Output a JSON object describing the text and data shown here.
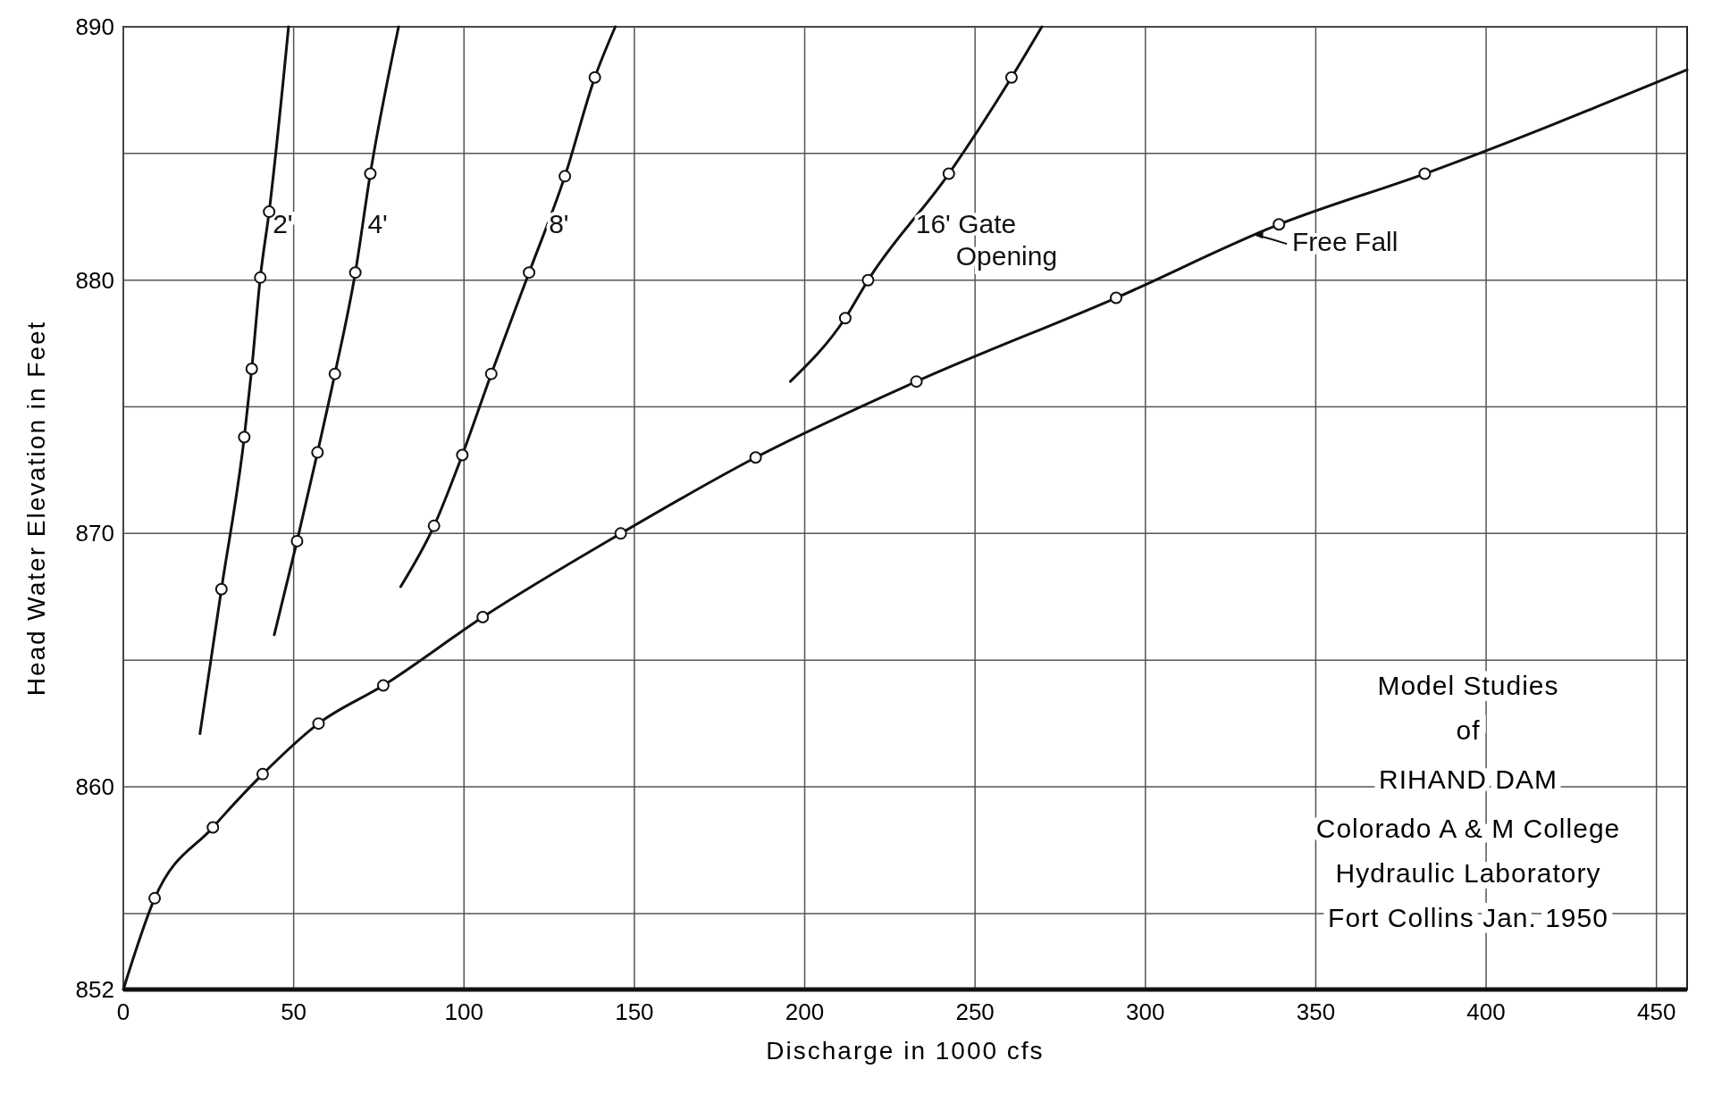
{
  "chart_data": {
    "type": "line",
    "xlabel": "Discharge in 1000 cfs",
    "ylabel": "Head Water Elevation in Feet",
    "xlim": [
      0,
      459
    ],
    "ylim": [
      852,
      890
    ],
    "xticks": [
      0,
      50,
      100,
      150,
      200,
      250,
      300,
      350,
      400,
      450
    ],
    "yticks": [
      852,
      {
        "value": 855,
        "label": null
      },
      860,
      {
        "value": 865,
        "label": null
      },
      870,
      {
        "value": 875,
        "label": null
      },
      880,
      {
        "value": 885,
        "label": null
      },
      890
    ],
    "grid": true,
    "series": [
      {
        "name": "2'",
        "color": "#111111",
        "marker": "none",
        "line_style": "solid",
        "x": [
          22.5,
          28.8,
          35.5,
          37.7,
          40.2,
          42.8,
          48.5
        ],
        "values": [
          862.1,
          867.8,
          873.8,
          876.5,
          880.1,
          882.7,
          890
        ]
      },
      {
        "type": "scatter",
        "color": "#111111",
        "marker": "circle",
        "x": [
          28.8,
          35.5,
          37.7,
          40.2,
          42.8
        ],
        "values": [
          867.8,
          873.8,
          876.5,
          880.1,
          882.7
        ]
      },
      {
        "name": "4'",
        "color": "#111111",
        "marker": "none",
        "line_style": "solid",
        "x": [
          44.3,
          51,
          57,
          62.1,
          68.1,
          72.5,
          80.8
        ],
        "values": [
          866.0,
          869.7,
          873.2,
          876.3,
          880.3,
          884.2,
          890
        ]
      },
      {
        "type": "scatter",
        "color": "#111111",
        "marker": "circle",
        "x": [
          51,
          57,
          62.1,
          68.1,
          72.5
        ],
        "values": [
          869.7,
          873.2,
          876.3,
          880.3,
          884.2
        ]
      },
      {
        "name": "8'",
        "color": "#111111",
        "marker": "none",
        "line_style": "solid",
        "x": [
          81.4,
          91.2,
          99.5,
          108,
          119.1,
          129.6,
          138.4,
          144.4
        ],
        "values": [
          867.9,
          870.3,
          873.1,
          876.3,
          880.3,
          884.1,
          888.0,
          890
        ]
      },
      {
        "type": "scatter",
        "color": "#111111",
        "marker": "circle",
        "x": [
          91.2,
          99.5,
          108,
          119.1,
          129.6,
          138.4
        ],
        "values": [
          870.3,
          873.1,
          876.3,
          880.3,
          884.1,
          888.0
        ]
      },
      {
        "name": "16' Gate Opening",
        "color": "#111111",
        "marker": "none",
        "line_style": "solid",
        "x": [
          195.8,
          211.9,
          218.6,
          242.3,
          260.7,
          269.6
        ],
        "values": [
          876.0,
          878.5,
          880.0,
          884.2,
          888.0,
          890
        ]
      },
      {
        "type": "scatter",
        "color": "#111111",
        "marker": "circle",
        "x": [
          211.9,
          218.6,
          242.3,
          260.7
        ],
        "values": [
          878.5,
          880.0,
          884.2,
          888.0
        ]
      },
      {
        "name": "Free Fall",
        "color": "#111111",
        "marker": "none",
        "line_style": "solid",
        "x": [
          0,
          9.2,
          26.3,
          40.9,
          57.3,
          76.3,
          105.5,
          146,
          185.6,
          232.8,
          291.4,
          339.2,
          382,
          459
        ],
        "values": [
          852,
          855.6,
          858.4,
          860.5,
          862.5,
          864.0,
          866.7,
          870.0,
          873.0,
          876.0,
          879.3,
          882.2,
          884.2,
          888.3
        ]
      },
      {
        "type": "scatter",
        "color": "#111111",
        "marker": "circle",
        "x": [
          9.2,
          26.3,
          40.9,
          57.3,
          76.3,
          105.5,
          146,
          185.6,
          232.8,
          291.4,
          339.2,
          382
        ],
        "values": [
          855.6,
          858.4,
          860.5,
          862.5,
          864.0,
          866.7,
          870.0,
          873.0,
          876.0,
          879.3,
          882.2,
          884.2
        ]
      }
    ],
    "annotations": [
      "Model Studies\nof",
      "RIHAND DAM",
      "Colorado A & M College\nHydraulic Laboratory\nFort Collins     Jan. 1950"
    ]
  }
}
